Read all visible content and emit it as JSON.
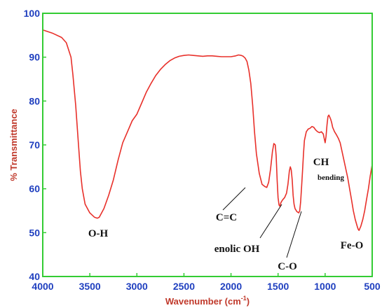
{
  "colors": {
    "frame": "#33cc33",
    "curve": "#e8302a",
    "tick_text": "#1f3fbf",
    "axis_title": "#c0392b",
    "annotation": "#111111"
  },
  "chart_data": {
    "type": "line",
    "title": "",
    "xlabel": "Wavenumber (cm",
    "xlabel_sup": "-1",
    "xlabel_close": ")",
    "ylabel": "% Transmittance",
    "xlim": [
      4000,
      500
    ],
    "ylim": [
      40,
      100
    ],
    "x_reversed": true,
    "grid": false,
    "legend": "none",
    "x_ticks": [
      "4000",
      "3500",
      "3000",
      "2500",
      "2000",
      "1500",
      "1000",
      "500"
    ],
    "y_ticks": [
      "40",
      "50",
      "60",
      "70",
      "80",
      "90",
      "100"
    ],
    "series": [
      {
        "x": [
          4000,
          3900,
          3800,
          3750,
          3700,
          3680,
          3650,
          3620,
          3600,
          3580,
          3550,
          3500,
          3450,
          3420,
          3400,
          3350,
          3300,
          3250,
          3200,
          3150,
          3100,
          3050,
          3000,
          2950,
          2900,
          2850,
          2800,
          2750,
          2700,
          2650,
          2600,
          2550,
          2500,
          2450,
          2400,
          2350,
          2300,
          2250,
          2200,
          2150,
          2100,
          2050,
          2000,
          1950,
          1920,
          1890,
          1870,
          1850,
          1830,
          1810,
          1790,
          1770,
          1750,
          1730,
          1700,
          1670,
          1640,
          1620,
          1600,
          1580,
          1560,
          1545,
          1530,
          1520,
          1510,
          1500,
          1490,
          1480,
          1470,
          1460,
          1450,
          1430,
          1410,
          1395,
          1380,
          1370,
          1360,
          1350,
          1340,
          1330,
          1320,
          1300,
          1280,
          1270,
          1260,
          1250,
          1240,
          1230,
          1220,
          1200,
          1180,
          1160,
          1140,
          1120,
          1100,
          1080,
          1060,
          1040,
          1020,
          1010,
          1000,
          990,
          980,
          970,
          960,
          950,
          940,
          930,
          920,
          900,
          880,
          860,
          840,
          820,
          800,
          780,
          760,
          740,
          720,
          700,
          680,
          660,
          650,
          640,
          620,
          600,
          580,
          560,
          540,
          520,
          500
        ],
        "y": [
          96.2,
          95.5,
          94.5,
          93.3,
          90.0,
          86.0,
          79.0,
          70.0,
          64.0,
          60.0,
          56.5,
          54.5,
          53.5,
          53.3,
          53.5,
          55.5,
          58.5,
          62.0,
          66.5,
          70.5,
          73.0,
          75.5,
          77.0,
          79.5,
          82.0,
          84.0,
          85.8,
          87.2,
          88.3,
          89.2,
          89.8,
          90.2,
          90.4,
          90.5,
          90.4,
          90.3,
          90.2,
          90.3,
          90.3,
          90.2,
          90.1,
          90.1,
          90.1,
          90.3,
          90.5,
          90.4,
          90.2,
          89.8,
          89.0,
          87.0,
          84.0,
          79.0,
          73.0,
          68.0,
          63.5,
          61.0,
          60.5,
          60.3,
          61.5,
          64.5,
          68.5,
          70.3,
          70.0,
          67.5,
          62.0,
          58.0,
          56.3,
          56.0,
          56.8,
          57.2,
          57.5,
          58.0,
          59.0,
          61.0,
          64.0,
          65.0,
          64.3,
          62.0,
          58.5,
          56.5,
          55.5,
          54.8,
          54.5,
          55.0,
          57.0,
          60.5,
          64.0,
          68.0,
          71.0,
          73.0,
          73.6,
          73.8,
          74.2,
          74.0,
          73.4,
          73.0,
          72.8,
          73.0,
          72.5,
          71.5,
          70.5,
          72.0,
          74.5,
          76.5,
          76.8,
          76.3,
          75.8,
          75.0,
          74.0,
          73.0,
          72.3,
          71.5,
          70.5,
          68.5,
          66.5,
          64.5,
          62.5,
          60.0,
          57.5,
          55.0,
          53.0,
          51.5,
          50.8,
          50.5,
          51.5,
          53.0,
          55.0,
          57.5,
          60.0,
          63.0,
          65.5
        ]
      }
    ],
    "annotations": [
      {
        "key": "oh",
        "label": "O-H"
      },
      {
        "key": "cc",
        "label": "C=C"
      },
      {
        "key": "enol",
        "label": "enolic OH"
      },
      {
        "key": "co",
        "label": "C-O"
      },
      {
        "key": "ch",
        "label": "CH"
      },
      {
        "key": "bend",
        "label": "bending"
      },
      {
        "key": "feo",
        "label": "Fe-O"
      }
    ]
  }
}
